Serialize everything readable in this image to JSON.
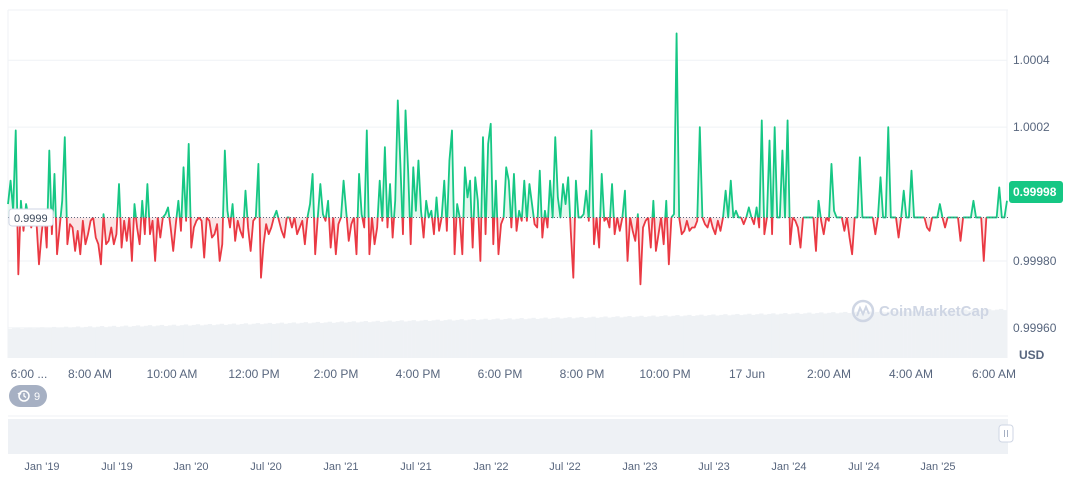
{
  "chart_data": {
    "type": "line",
    "baseline": 0.99993,
    "baseline_label": "0.9999",
    "current_value_label": "0.99998",
    "ylim": [
      0.99951,
      1.00055
    ],
    "yticks": [
      {
        "value": 1.0004,
        "label": "1.0004"
      },
      {
        "value": 1.0002,
        "label": "1.0002"
      },
      {
        "value": 0.9998,
        "label": "0.99980"
      },
      {
        "value": 0.9996,
        "label": "0.99960"
      }
    ],
    "y_unit": "USD",
    "x_labels": [
      "6:00 ...",
      "8:00 AM",
      "10:00 AM",
      "12:00 PM",
      "2:00 PM",
      "4:00 PM",
      "6:00 PM",
      "8:00 PM",
      "10:00 PM",
      "17 Jun",
      "2:00 AM",
      "4:00 AM",
      "6:00 AM"
    ],
    "values": [
      0.99997,
      1.00004,
      0.99995,
      1.00019,
      0.99976,
      0.99998,
      0.99989,
      0.99997,
      0.99993,
      0.9999,
      0.99993,
      0.99992,
      0.99979,
      0.99988,
      0.99995,
      0.99984,
      1.00013,
      0.99988,
      1.00006,
      0.99982,
      0.9999,
      0.99998,
      1.00017,
      0.99985,
      0.99991,
      0.9999,
      0.99983,
      0.99989,
      0.99982,
      0.99992,
      0.99985,
      0.99988,
      0.99992,
      0.99993,
      0.99987,
      0.99985,
      0.99979,
      0.99994,
      0.99985,
      0.99986,
      0.9999,
      0.99985,
      0.99988,
      1.00003,
      0.99984,
      0.99992,
      0.99986,
      0.99993,
      0.9998,
      0.99997,
      0.9999,
      0.99985,
      0.99998,
      0.99988,
      1.00003,
      0.99988,
      0.99992,
      0.9998,
      0.99993,
      0.99987,
      0.99993,
      0.99994,
      0.99996,
      0.9999,
      0.99983,
      0.99991,
      0.99998,
      0.99989,
      1.00008,
      0.99992,
      1.00015,
      0.99984,
      0.9999,
      0.99992,
      0.99993,
      0.99992,
      0.99981,
      0.99993,
      0.99992,
      0.99987,
      0.99988,
      0.99991,
      0.9998,
      0.99985,
      1.00013,
      0.99995,
      0.9999,
      0.99997,
      0.99986,
      0.99992,
      0.99989,
      0.99987,
      1.00001,
      0.9999,
      0.99983,
      0.99992,
      0.99993,
      1.00009,
      0.99975,
      0.99985,
      0.99991,
      0.99988,
      0.9999,
      0.99993,
      0.99995,
      0.99992,
      0.99989,
      0.99987,
      0.99993,
      0.99993,
      0.9999,
      0.99993,
      0.99988,
      0.9999,
      0.99992,
      0.99985,
      0.99993,
      0.99997,
      1.00006,
      0.99982,
      0.99993,
      1.00003,
      0.99994,
      0.99992,
      0.99998,
      0.99984,
      0.99993,
      0.99982,
      0.99991,
      0.99993,
      1.00004,
      0.99995,
      0.99986,
      0.99991,
      0.99993,
      0.99982,
      1.00006,
      0.99994,
      0.9999,
      1.00019,
      0.99982,
      0.99993,
      0.99985,
      0.9999,
      1.00004,
      0.99992,
      1.00014,
      0.9999,
      1.00003,
      0.99987,
      0.99998,
      1.00028,
      1.00009,
      0.99988,
      1.00025,
      1.00007,
      0.99985,
      1.00008,
      0.99995,
      1.0001,
      0.99995,
      0.99987,
      0.99998,
      0.99993,
      0.99995,
      0.99988,
      0.99999,
      0.99989,
      0.99993,
      1.00004,
      0.99989,
      1.0001,
      1.00019,
      0.99982,
      0.99997,
      0.99993,
      0.99982,
      1.00008,
      0.99999,
      1.00004,
      0.99984,
      1.00005,
      0.99998,
      0.9998,
      1.00017,
      0.99988,
      1.00015,
      1.00021,
      0.99985,
      1.00004,
      0.99982,
      0.99991,
      0.99993,
      1.00008,
      1.00004,
      0.9999,
      1.00006,
      0.99989,
      0.99995,
      0.99992,
      1.00004,
      0.99992,
      1.00003,
      0.99997,
      0.99991,
      0.9999,
      1.00007,
      0.99987,
      0.99995,
      0.9999,
      1.00004,
      0.99993,
      1.00017,
      0.99999,
      0.99993,
      1.00003,
      0.99997,
      1.00005,
      0.99989,
      0.99975,
      1.00004,
      0.99993,
      0.99993,
      0.99994,
      1.00001,
      0.99992,
      1.00019,
      0.99985,
      0.99993,
      0.99984,
      1.00006,
      0.99992,
      0.99993,
      0.9999,
      1.00003,
      0.99988,
      0.99993,
      0.99989,
      0.99993,
      1.00001,
      0.9998,
      0.99993,
      0.99989,
      0.99986,
      0.99994,
      0.99973,
      0.9999,
      0.99992,
      0.99993,
      0.99984,
      0.99998,
      0.99983,
      0.99988,
      0.99993,
      0.99985,
      0.99998,
      0.99979,
      0.99993,
      0.99994,
      1.00048,
      0.99993,
      0.99988,
      0.99989,
      0.99992,
      0.99989,
      0.9999,
      0.9999,
      0.99992,
      1.0002,
      0.99993,
      0.99991,
      0.9999,
      0.99993,
      0.9999,
      0.99988,
      0.99992,
      0.99989,
      0.99993,
      1.00001,
      0.99993,
      1.00004,
      0.99993,
      0.99995,
      0.99993,
      0.99993,
      0.99991,
      0.99993,
      0.99996,
      0.99993,
      0.99991,
      0.99996,
      0.9999,
      1.00022,
      0.99988,
      0.99993,
      1.00016,
      0.99988,
      1.0002,
      0.99993,
      0.99993,
      1.00013,
      0.99993,
      1.00022,
      0.99985,
      0.99993,
      0.99992,
      0.9999,
      0.99984,
      0.99993,
      0.99993,
      0.99993,
      0.99993,
      0.99993,
      0.99983,
      0.99998,
      0.99992,
      0.99988,
      0.99993,
      0.99992,
      1.00009,
      0.99995,
      0.99993,
      0.99993,
      0.99993,
      0.99989,
      0.99993,
      0.99987,
      0.99982,
      0.99993,
      0.99993,
      1.00011,
      0.99993,
      0.99993,
      0.99993,
      0.99993,
      0.99993,
      0.99988,
      0.99993,
      1.00005,
      0.99993,
      0.99993,
      1.0002,
      0.99993,
      0.99993,
      0.99993,
      0.99987,
      0.99993,
      1.00001,
      0.99993,
      0.99993,
      1.00007,
      0.99993,
      0.99993,
      0.99993,
      0.99993,
      0.99993,
      0.9999,
      0.99989,
      0.99993,
      0.99993,
      0.99993,
      0.99997,
      0.99993,
      0.9999,
      0.99993,
      0.99993,
      0.99993,
      0.99993,
      0.99993,
      0.99986,
      0.99993,
      0.99993,
      0.99993,
      0.99993,
      0.99998,
      0.99993,
      0.99993,
      0.99993,
      0.9998,
      0.99993,
      0.99993,
      0.99993,
      0.99993,
      0.99993,
      1.00002,
      0.99993,
      0.99993,
      0.99998
    ],
    "navigator_labels": [
      "Jan '19",
      "Jul '19",
      "Jan '20",
      "Jul '20",
      "Jan '21",
      "Jul '21",
      "Jan '22",
      "Jul '22",
      "Jan '23",
      "Jul '23",
      "Jan '24",
      "Jul '24",
      "Jan '25"
    ]
  },
  "watermark": "CoinMarketCap",
  "history_badge": {
    "icon": "history-icon",
    "count": "9"
  },
  "colors": {
    "up": "#16c784",
    "down": "#ea3943",
    "up_fill": "#e3f8ee",
    "down_fill": "#fbe4e5",
    "grid": "#eff2f5",
    "volume": "#eff2f5"
  }
}
